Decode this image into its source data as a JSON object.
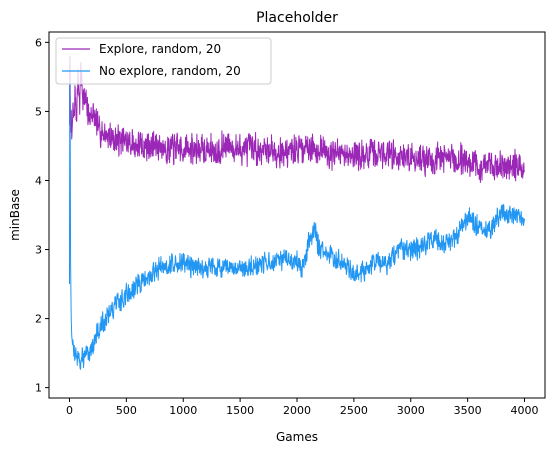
{
  "chart_data": {
    "type": "line",
    "title": "Placeholder",
    "xlabel": "Games",
    "ylabel": "minBase",
    "xlim": [
      -180,
      4180
    ],
    "ylim": [
      0.85,
      6.15
    ],
    "xticks": [
      0,
      500,
      1000,
      1500,
      2000,
      2500,
      3000,
      3500,
      4000
    ],
    "yticks": [
      1,
      2,
      3,
      4,
      5,
      6
    ],
    "grid": false,
    "legend_position": "top-left",
    "series": [
      {
        "name": "Explore, random, 20",
        "color": "#9b27b6",
        "x": [
          0,
          3,
          6,
          10,
          15,
          20,
          30,
          40,
          50,
          60,
          75,
          90,
          100,
          120,
          150,
          175,
          200,
          225,
          250,
          300,
          400,
          500,
          600,
          700,
          800,
          900,
          1000,
          1100,
          1200,
          1300,
          1400,
          1500,
          1600,
          1700,
          1800,
          1900,
          2000,
          2100,
          2200,
          2300,
          2400,
          2500,
          2600,
          2700,
          2800,
          2900,
          3000,
          3100,
          3200,
          3300,
          3400,
          3500,
          3600,
          3700,
          3800,
          3900,
          4000
        ],
        "y": [
          4.8,
          6.0,
          5.4,
          4.7,
          5.1,
          4.6,
          5.0,
          4.9,
          5.3,
          4.9,
          5.5,
          5.1,
          5.6,
          5.2,
          5.1,
          4.9,
          5.0,
          4.85,
          4.75,
          4.7,
          4.6,
          4.55,
          4.5,
          4.5,
          4.5,
          4.45,
          4.45,
          4.45,
          4.45,
          4.45,
          4.5,
          4.45,
          4.45,
          4.45,
          4.45,
          4.4,
          4.45,
          4.5,
          4.45,
          4.4,
          4.35,
          4.4,
          4.35,
          4.4,
          4.4,
          4.35,
          4.35,
          4.3,
          4.3,
          4.35,
          4.3,
          4.3,
          4.2,
          4.2,
          4.2,
          4.25,
          4.1
        ],
        "noise": 0.26,
        "seed": 7
      },
      {
        "name": "No explore, random, 20",
        "color": "#2196f3",
        "x": [
          0,
          3,
          6,
          10,
          15,
          20,
          25,
          30,
          40,
          50,
          60,
          80,
          100,
          150,
          200,
          250,
          300,
          350,
          400,
          450,
          500,
          550,
          600,
          700,
          800,
          900,
          1000,
          1100,
          1200,
          1300,
          1400,
          1500,
          1600,
          1700,
          1800,
          1900,
          2000,
          2050,
          2100,
          2150,
          2200,
          2300,
          2400,
          2500,
          2600,
          2700,
          2800,
          2900,
          3000,
          3100,
          3200,
          3300,
          3400,
          3500,
          3600,
          3700,
          3800,
          3900,
          4000
        ],
        "y": [
          2.5,
          5.7,
          4.9,
          2.8,
          2.0,
          1.75,
          1.65,
          1.6,
          1.55,
          1.5,
          1.45,
          1.4,
          1.4,
          1.45,
          1.6,
          1.8,
          1.95,
          2.05,
          2.2,
          2.25,
          2.35,
          2.4,
          2.5,
          2.6,
          2.75,
          2.8,
          2.8,
          2.75,
          2.75,
          2.75,
          2.7,
          2.7,
          2.75,
          2.8,
          2.8,
          2.85,
          2.85,
          2.7,
          3.1,
          3.3,
          3.0,
          2.9,
          2.85,
          2.65,
          2.7,
          2.85,
          2.8,
          3.0,
          2.95,
          3.05,
          3.15,
          3.1,
          3.2,
          3.5,
          3.3,
          3.25,
          3.55,
          3.5,
          3.4
        ],
        "noise": 0.18,
        "seed": 13
      }
    ]
  }
}
